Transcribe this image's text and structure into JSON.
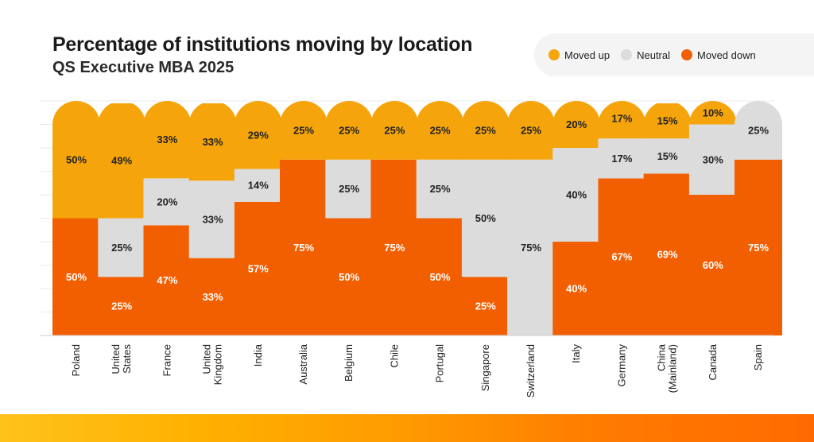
{
  "header": {
    "title": "Percentage of institutions moving by location",
    "subtitle": "QS Executive MBA 2025"
  },
  "legend": {
    "items": [
      {
        "label": "Moved up",
        "color": "#f5a50b"
      },
      {
        "label": "Neutral",
        "color": "#dcdcdc"
      },
      {
        "label": "Moved down",
        "color": "#f25f00"
      }
    ]
  },
  "chart_data": {
    "type": "bar",
    "stacked": true,
    "orientation": "vertical",
    "title": "Percentage of institutions moving by location",
    "subtitle": "QS Executive MBA 2025",
    "ylim": [
      0,
      100
    ],
    "grid": true,
    "legend_position": "top-right",
    "categories": [
      "Poland",
      "United States",
      "France",
      "United Kingdom",
      "India",
      "Australia",
      "Belgium",
      "Chile",
      "Portugal",
      "Singapore",
      "Switzerland",
      "Italy",
      "Germany",
      "China (Mainland)",
      "Canada",
      "Spain"
    ],
    "category_label_lines": [
      [
        "Poland"
      ],
      [
        "United",
        "States"
      ],
      [
        "France"
      ],
      [
        "United",
        "Kingdom"
      ],
      [
        "India"
      ],
      [
        "Australia"
      ],
      [
        "Belgium"
      ],
      [
        "Chile"
      ],
      [
        "Portugal"
      ],
      [
        "Singapore"
      ],
      [
        "Switzerland"
      ],
      [
        "Italy"
      ],
      [
        "Germany"
      ],
      [
        "China",
        "(Mainland)"
      ],
      [
        "Canada"
      ],
      [
        "Spain"
      ]
    ],
    "series": [
      {
        "name": "Moved down",
        "color": "#f25f00",
        "values": [
          50,
          25,
          47,
          33,
          57,
          75,
          50,
          75,
          50,
          25,
          0,
          40,
          67,
          69,
          60,
          75
        ]
      },
      {
        "name": "Neutral",
        "color": "#dcdcdc",
        "values": [
          0,
          25,
          20,
          33,
          14,
          0,
          25,
          0,
          25,
          50,
          75,
          40,
          17,
          15,
          30,
          25
        ]
      },
      {
        "name": "Moved up",
        "color": "#f5a50b",
        "values": [
          50,
          49,
          33,
          33,
          29,
          25,
          25,
          25,
          25,
          25,
          25,
          20,
          17,
          15,
          10,
          0
        ]
      }
    ]
  }
}
